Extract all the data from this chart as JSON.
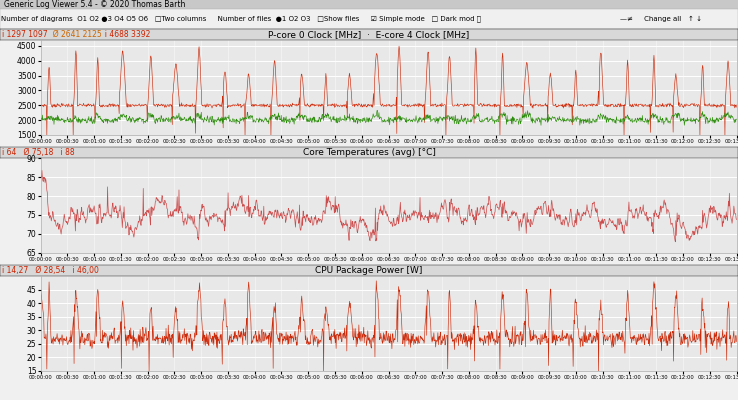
{
  "title_bar": "Generic Log Viewer 5.4 - © 2020 Thomas Barth",
  "toolbar_text": "Number of diagrams  O1 O2 *3 O4 O5 O6   Two columns     Number of files  *1 O2 O3   Show files     Simple mode   Dark mod        Change all",
  "panel1_title": "P-core 0 Clock [MHz]  ·  E-core 4 Clock [MHz]",
  "panel1_stats": "i 1297 1097   Ø 2641 2125   i 4688 3392",
  "panel1_ylim": [
    1500,
    4700
  ],
  "panel1_yticks": [
    1500,
    2000,
    2500,
    3000,
    3500,
    4000,
    4500
  ],
  "panel1_line1_color": "#cc2200",
  "panel1_line2_color": "#228800",
  "panel2_title": "Core Temperatures (avg) [°C]",
  "panel2_stats": "i 64   Ø 75,18   i 88",
  "panel2_ylim": [
    65,
    90
  ],
  "panel2_yticks": [
    65,
    70,
    75,
    80,
    85,
    90
  ],
  "panel2_line_color": "#cc4444",
  "panel3_title": "CPU Package Power [W]",
  "panel3_stats": "i 14,27   Ø 28,54   i 46,00",
  "panel3_ylim": [
    15,
    50
  ],
  "panel3_yticks": [
    15,
    20,
    25,
    30,
    35,
    40,
    45
  ],
  "panel3_line_color": "#cc2200",
  "bg_color": "#f0f0f0",
  "plot_bg_color": "#e8e8e8",
  "grid_color": "#ffffff",
  "titlebar_bg": "#c8c8c8",
  "toolbar_bg": "#f0f0f0",
  "panel_header_bg": "#d8d8d8",
  "n_points": 1560,
  "duration_min": 13
}
